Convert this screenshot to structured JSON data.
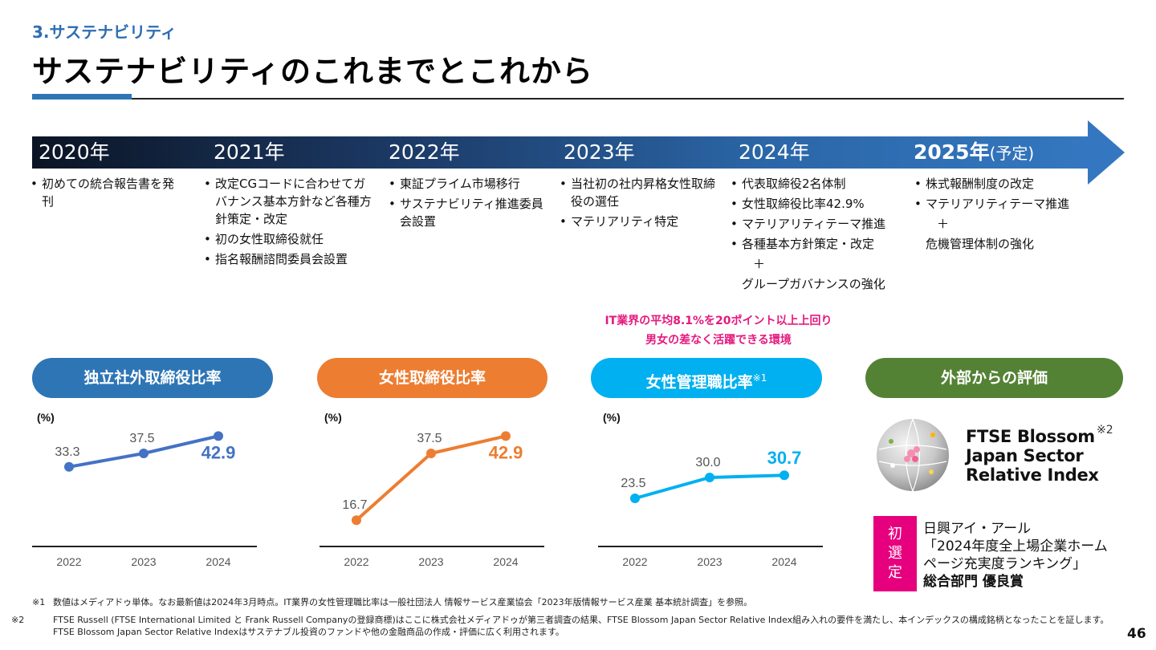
{
  "header": {
    "section": "3.サステナビリティ",
    "title": "サステナビリティのこれまでとこれから"
  },
  "timeline": {
    "years": [
      {
        "label": "2020年",
        "note": "",
        "items": [
          "初めての統合報告書を発刊"
        ],
        "plain": []
      },
      {
        "label": "2021年",
        "note": "",
        "items": [
          "改定CGコードに合わせてガバナンス基本方針など各種方針策定・改定",
          "初の女性取締役就任",
          "指名報酬諮問委員会設置"
        ],
        "plain": []
      },
      {
        "label": "2022年",
        "note": "",
        "items": [
          "東証プライム市場移行",
          "サステナビリティ推進委員会設置"
        ],
        "plain": []
      },
      {
        "label": "2023年",
        "note": "",
        "items": [
          "当社初の社内昇格女性取締役の選任",
          "マテリアリティ特定"
        ],
        "plain": []
      },
      {
        "label": "2024年",
        "note": "",
        "items": [
          "代表取締役2名体制",
          "女性取締役比率42.9%",
          "マテリアリティテーマ推進",
          "各種基本方針策定・改定"
        ],
        "plain": [
          "＋",
          "グループガバナンスの強化"
        ]
      },
      {
        "label": "2025年",
        "note": "(予定)",
        "items": [
          "株式報酬制度の改定",
          "マテリアリティテーマ推進"
        ],
        "plain": [
          "＋",
          "危機管理体制の強化"
        ]
      }
    ]
  },
  "callout": {
    "line1": "IT業界の平均8.1%を20ポイント以上上回り",
    "line2": "男女の差なく活躍できる環境"
  },
  "metrics": [
    {
      "title": "独立社外取締役比率",
      "sup": "",
      "color": "#2e75b6"
    },
    {
      "title": "女性取締役比率",
      "sup": "",
      "color": "#ed7d31"
    },
    {
      "title": "女性管理職比率",
      "sup": "※1",
      "color": "#00b0f0"
    },
    {
      "title": "外部からの評価",
      "sup": "",
      "color": "#548235"
    }
  ],
  "chart_data": [
    {
      "type": "line",
      "title": "独立社外取締役比率",
      "ylabel": "(%)",
      "categories": [
        "2022",
        "2023",
        "2024"
      ],
      "values": [
        33.3,
        37.5,
        42.9
      ],
      "color": "#4472c4",
      "highlight_last": true
    },
    {
      "type": "line",
      "title": "女性取締役比率",
      "ylabel": "(%)",
      "categories": [
        "2022",
        "2023",
        "2024"
      ],
      "values": [
        16.7,
        37.5,
        42.9
      ],
      "color": "#ed7d31",
      "highlight_last": true
    },
    {
      "type": "line",
      "title": "女性管理職比率",
      "ylabel": "(%)",
      "categories": [
        "2022",
        "2023",
        "2024"
      ],
      "values": [
        23.5,
        30.0,
        30.7
      ],
      "value_labels": [
        "23.5",
        "30.0",
        "30.7"
      ],
      "color": "#00b0f0",
      "highlight_last": true
    }
  ],
  "external": {
    "ftse_lines": [
      "FTSE Blossom",
      "Japan Sector",
      "Relative Index"
    ],
    "ftse_note": "※2",
    "badge_chars": [
      "初",
      "選",
      "定"
    ],
    "award_lines": [
      "日興アイ・アール",
      "「2024年度全上場企業ホーム",
      "ページ充実度ランキング」"
    ],
    "award_bold": "総合部門 優良賞"
  },
  "footnotes": [
    {
      "mark": "※1",
      "text": "数値はメディアドゥ単体。なお最新値は2024年3月時点。IT業界の女性管理職比率は一般社団法人 情報サービス産業協会「2023年版情報サービス産業 基本統計調査」を参照。"
    },
    {
      "mark": "※2",
      "text": "FTSE Russell (FTSE International Limited と Frank Russell Companyの登録商標)はここに株式会社メディアドゥが第三者調査の結果、FTSE Blossom Japan Sector Relative Index組み入れの要件を満たし、本インデックスの構成銘柄となったことを証します。FTSE Blossom Japan Sector Relative Indexはサステナブル投資のファンドや他の金融商品の作成・評価に広く利用されます。"
    }
  ],
  "page_number": "46"
}
